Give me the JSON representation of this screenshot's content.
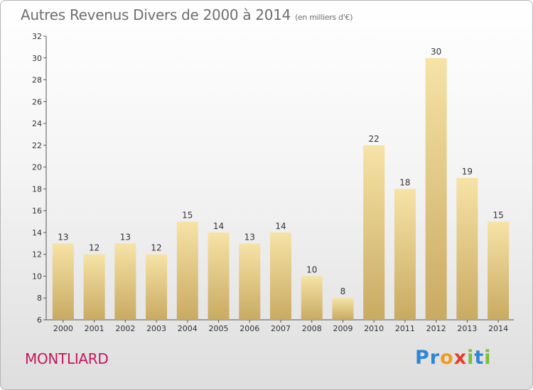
{
  "header": {
    "title": "Autres Revenus Divers de 2000 à 2014",
    "unit": "(en milliers d'€)"
  },
  "footer": {
    "commune": "MONTLIARD",
    "logo_text": "Proxiti"
  },
  "colors": {
    "bar_light": "#f6e3a6",
    "bar_dark": "#c9aa62",
    "axis": "#555555",
    "commune": "#c2185b",
    "title": "#6e6e6e"
  },
  "chart_data": {
    "type": "bar",
    "title": "Autres Revenus Divers de 2000 à 2014",
    "subtitle": "(en milliers d'€)",
    "categories": [
      "2000",
      "2001",
      "2002",
      "2003",
      "2004",
      "2005",
      "2006",
      "2007",
      "2008",
      "2009",
      "2010",
      "2011",
      "2012",
      "2013",
      "2014"
    ],
    "values": [
      13,
      12,
      13,
      12,
      15,
      14,
      13,
      14,
      10,
      8,
      22,
      18,
      30,
      19,
      15
    ],
    "ylim": [
      6,
      32
    ],
    "yticks": [
      6,
      8,
      10,
      12,
      14,
      16,
      18,
      20,
      22,
      24,
      26,
      28,
      30,
      32
    ],
    "grid": false,
    "legend": "none"
  }
}
